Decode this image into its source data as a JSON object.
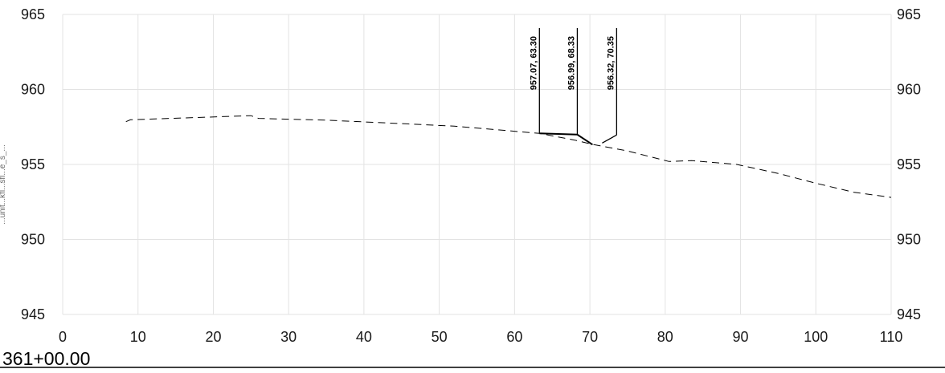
{
  "chart_data": {
    "type": "line",
    "title": "",
    "xlabel": "",
    "ylabel": "",
    "xlim": [
      0,
      110
    ],
    "ylim": [
      945,
      965
    ],
    "x_ticks": [
      0,
      10,
      20,
      30,
      40,
      50,
      60,
      70,
      80,
      90,
      100,
      110
    ],
    "y_ticks": [
      945,
      950,
      955,
      960,
      965
    ],
    "grid": true,
    "station_label": "361+00.00",
    "side_label": "...unit...kfl...sfl...e_s_...",
    "series": [
      {
        "style": "dashed",
        "x": [
          8.4,
          9.0,
          25.0,
          26.0,
          35.0,
          45.0,
          52.0,
          58.0,
          63.3,
          68.0,
          70.5,
          75.0,
          80.5,
          83.5,
          89.5,
          95.0,
          100.0,
          105.0,
          110.0
        ],
        "y": [
          957.85,
          957.98,
          958.25,
          958.07,
          957.95,
          957.72,
          957.55,
          957.3,
          957.07,
          956.62,
          956.32,
          955.9,
          955.2,
          955.25,
          955.0,
          954.4,
          953.75,
          953.15,
          952.8
        ]
      },
      {
        "style": "solid",
        "x": [
          63.3,
          68.33,
          70.35
        ],
        "y": [
          957.07,
          956.99,
          956.32
        ]
      }
    ],
    "annotations": [
      {
        "label": "957.07,  63.30",
        "x": 63.3,
        "y": 957.07
      },
      {
        "label": "956.99,  68.33",
        "x": 68.33,
        "y": 956.99
      },
      {
        "label": "956.32,  70.35",
        "x": 70.35,
        "y": 956.32
      }
    ]
  }
}
